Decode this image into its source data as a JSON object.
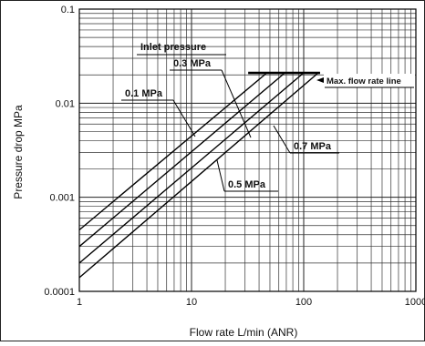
{
  "chart_data": {
    "type": "line",
    "xlabel": "Flow rate L/min (ANR)",
    "ylabel": "Pressure drop  MPa",
    "x_scale": "log",
    "y_scale": "log",
    "xlim": [
      1,
      1000
    ],
    "ylim": [
      0.0001,
      0.1
    ],
    "grid": true,
    "x_ticks": [
      {
        "value": 1,
        "label": "1"
      },
      {
        "value": 10,
        "label": "10"
      },
      {
        "value": 100,
        "label": "100"
      },
      {
        "value": 1000,
        "label": "1000"
      }
    ],
    "y_ticks": [
      {
        "value": 0.0001,
        "label": "0.0001"
      },
      {
        "value": 0.001,
        "label": "0.001"
      },
      {
        "value": 0.01,
        "label": "0.01"
      },
      {
        "value": 0.1,
        "label": "0.1"
      }
    ],
    "series": [
      {
        "name": "0.1 MPa",
        "x": [
          1,
          47
        ],
        "y": [
          0.00045,
          0.021
        ]
      },
      {
        "name": "0.3 MPa",
        "x": [
          1,
          68
        ],
        "y": [
          0.0003,
          0.021
        ]
      },
      {
        "name": "0.5 MPa",
        "x": [
          1,
          100
        ],
        "y": [
          0.0002,
          0.021
        ]
      },
      {
        "name": "0.7 MPa",
        "x": [
          1,
          135
        ],
        "y": [
          0.00014,
          0.021
        ]
      }
    ],
    "max_flow_line": {
      "label": "Max. flow rate line",
      "x": [
        32,
        140
      ],
      "y": 0.021
    },
    "annotations": [
      {
        "text": "Inlet pressure"
      }
    ]
  }
}
